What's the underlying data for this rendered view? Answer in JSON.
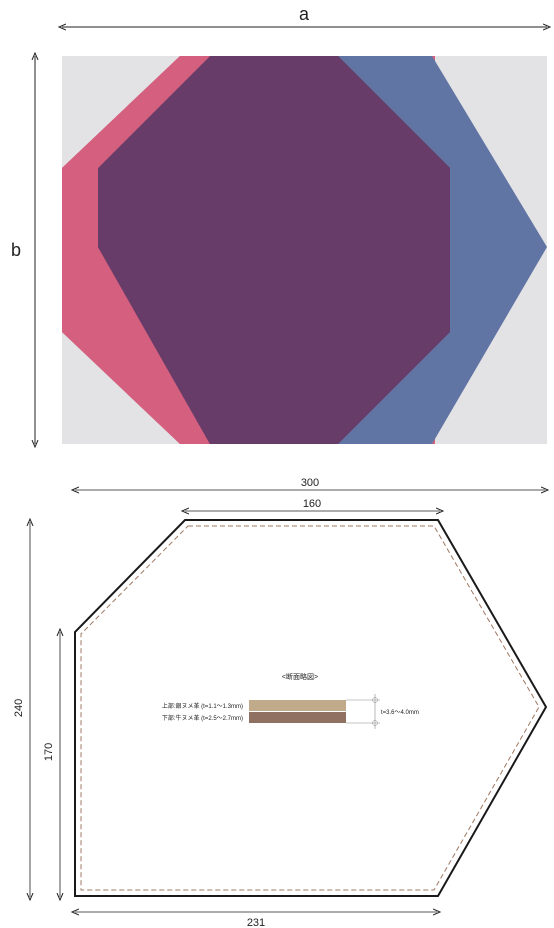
{
  "top_figure": {
    "dim_a_label": "a",
    "dim_b_label": "b",
    "colors": {
      "background": "#e3e2e5",
      "red_shape": "#d45f7e",
      "blue_shape": "#6075a4",
      "overlap_shape": "#683c69"
    }
  },
  "bottom_figure": {
    "dim_total_width": "300",
    "dim_top_edge": "160",
    "dim_bottom_edge": "231",
    "dim_total_height": "240",
    "dim_left_edge": "170",
    "section_title": "<断面略図>",
    "upper_layer_label": "上部:銀ヌメ革 (t=1.1〜1.3mm)",
    "lower_layer_label": "下部:牛ヌメ革 (t=2.5〜2.7mm)",
    "thickness_label": "t=3.6〜4.0mm",
    "colors": {
      "outline": "#1a1a1a",
      "stitch": "#a07860",
      "upper_layer": "#c0aa8a",
      "lower_layer": "#907060"
    }
  }
}
